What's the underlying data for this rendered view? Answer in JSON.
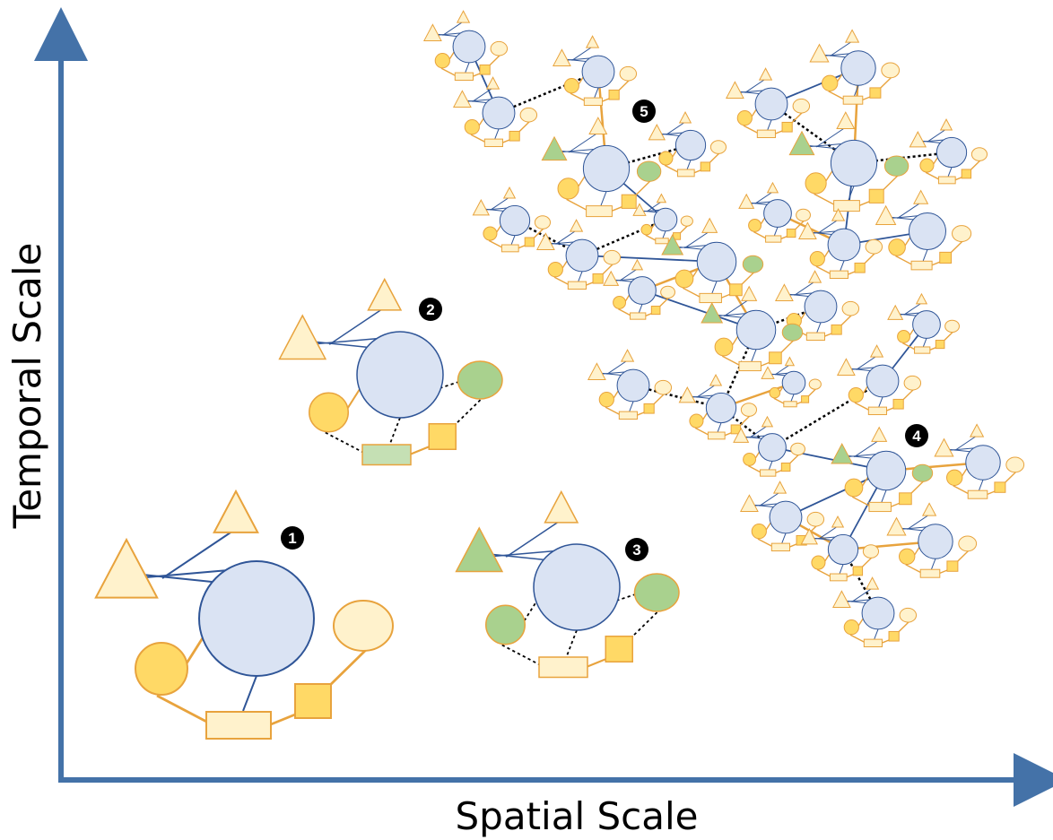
{
  "axes": {
    "x_label": "Spatial Scale",
    "y_label": "Temporal Scale"
  },
  "badges": [
    "1",
    "2",
    "3",
    "4",
    "5"
  ],
  "colors": {
    "axis": "#4472a8",
    "hub_fill": "#dae3f3",
    "hub_stroke": "#2f5597",
    "light_yellow": "#fff2cc",
    "mid_yellow": "#ffe699",
    "gold": "#ffd966",
    "green": "#c5e0b4",
    "green_dark": "#a9d18e",
    "orange_stroke": "#e8a33d",
    "link_blue": "#2f5597",
    "link_orange": "#e8a33d",
    "link_dotted": "#000000",
    "badge": "#000000"
  }
}
